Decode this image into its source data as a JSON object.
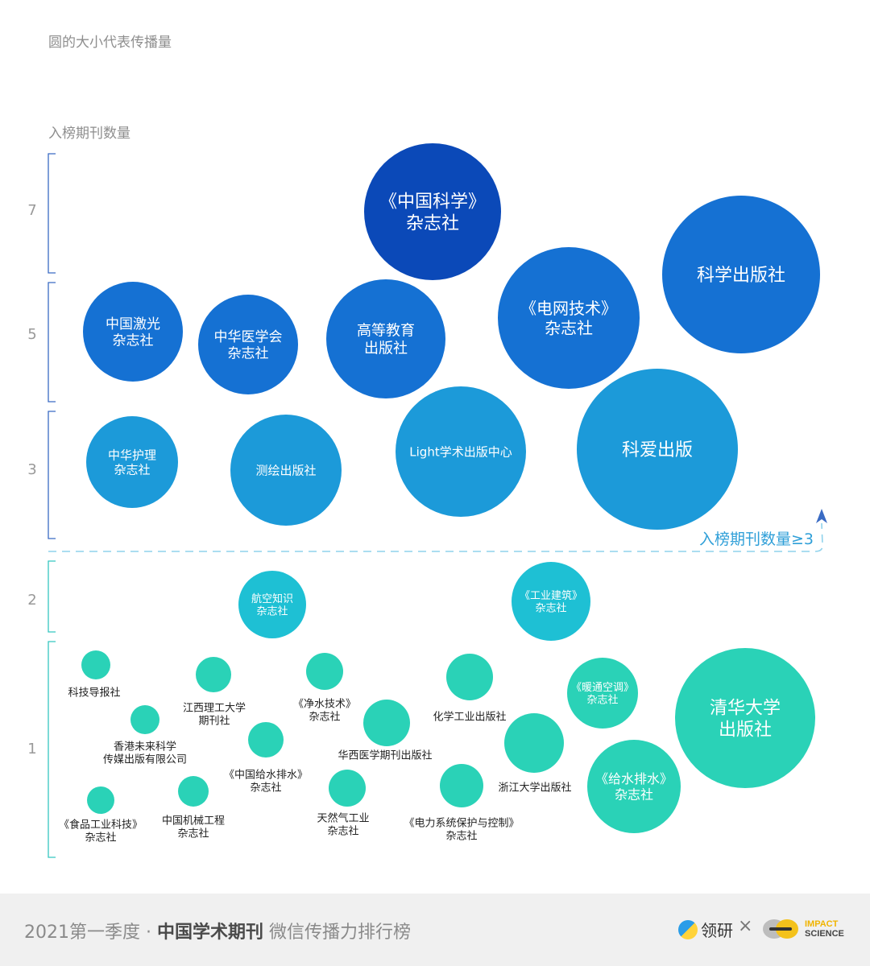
{
  "header": {
    "size_note": "圆的大小代表传播量",
    "y_axis_title": "入榜期刊数量"
  },
  "threshold_label": "入榜期刊数量≥3",
  "footer": {
    "year_text": "2021第一季度",
    "separator": "·",
    "title_bold": "中国学术期刊",
    "title_rest": "微信传播力排行榜",
    "brand_left": "领研",
    "times": "×",
    "brand_right_line1": "IMPACT",
    "brand_right_line2": "SCIENCE"
  },
  "colors": {
    "navy": "#0b49b8",
    "blue": "#1571d3",
    "sky": "#1c9ad9",
    "teal_dark": "#1ec0d4",
    "teal": "#2ad2b7",
    "axis_blue": "#3a6bc4",
    "axis_teal": "#35c7c0"
  },
  "chart_data": {
    "type": "bubble",
    "y_label": "入榜期刊数量",
    "y_ticks": [
      "1",
      "2",
      "3",
      "5",
      "7"
    ],
    "size_encoding": "圆的大小代表传播量",
    "threshold": {
      "label": "入榜期刊数量≥3",
      "value": 3
    },
    "publishers": [
      {
        "name_lines": [
          "《中国科学》",
          "杂志社"
        ],
        "count": 7,
        "size": 85,
        "color": "navy"
      },
      {
        "name_lines": [
          "科学出版社"
        ],
        "count": 5,
        "size": 98,
        "color": "blue"
      },
      {
        "name_lines": [
          "中国激光",
          "杂志社"
        ],
        "count": 5,
        "size": 62,
        "color": "blue"
      },
      {
        "name_lines": [
          "中华医学会",
          "杂志社"
        ],
        "count": 5,
        "size": 62,
        "color": "blue"
      },
      {
        "name_lines": [
          "高等教育",
          "出版社"
        ],
        "count": 5,
        "size": 74,
        "color": "blue"
      },
      {
        "name_lines": [
          "《电网技术》",
          "杂志社"
        ],
        "count": 5,
        "size": 88,
        "color": "blue"
      },
      {
        "name_lines": [
          "中华护理",
          "杂志社"
        ],
        "count": 3,
        "size": 57,
        "color": "sky"
      },
      {
        "name_lines": [
          "测绘出版社"
        ],
        "count": 3,
        "size": 69,
        "color": "sky"
      },
      {
        "name_lines": [
          "Light学术出版中心"
        ],
        "count": 3,
        "size": 81,
        "color": "sky"
      },
      {
        "name_lines": [
          "科爱出版"
        ],
        "count": 3,
        "size": 100,
        "color": "sky"
      },
      {
        "name_lines": [
          "航空知识",
          "杂志社"
        ],
        "count": 2,
        "size": 42,
        "color": "teal_dark"
      },
      {
        "name_lines": [
          "《工业建筑》",
          "杂志社"
        ],
        "count": 2,
        "size": 49,
        "color": "teal_dark"
      },
      {
        "name_lines": [
          "科技导报社"
        ],
        "count": 1,
        "size": 18,
        "color": "teal"
      },
      {
        "name_lines": [
          "江西理工大学",
          "期刊社"
        ],
        "count": 1,
        "size": 22,
        "color": "teal"
      },
      {
        "name_lines": [
          "《净水技术》",
          "杂志社"
        ],
        "count": 1,
        "size": 23,
        "color": "teal"
      },
      {
        "name_lines": [
          "化学工业出版社"
        ],
        "count": 1,
        "size": 29,
        "color": "teal"
      },
      {
        "name_lines": [
          "《暖通空调》",
          "杂志社"
        ],
        "count": 1,
        "size": 44,
        "color": "teal"
      },
      {
        "name_lines": [
          "清华大学",
          "出版社"
        ],
        "count": 1,
        "size": 87,
        "color": "teal"
      },
      {
        "name_lines": [
          "香港未来科学",
          "传媒出版有限公司"
        ],
        "count": 1,
        "size": 18,
        "color": "teal"
      },
      {
        "name_lines": [
          "《中国给水排水》",
          "杂志社"
        ],
        "count": 1,
        "size": 22,
        "color": "teal"
      },
      {
        "name_lines": [
          "华西医学期刊出版社"
        ],
        "count": 1,
        "size": 29,
        "color": "teal"
      },
      {
        "name_lines": [
          "浙江大学出版社"
        ],
        "count": 1,
        "size": 37,
        "color": "teal"
      },
      {
        "name_lines": [
          "《给水排水》",
          "杂志社"
        ],
        "count": 1,
        "size": 58,
        "color": "teal"
      },
      {
        "name_lines": [
          "《食品工业科技》",
          "杂志社"
        ],
        "count": 1,
        "size": 17,
        "color": "teal"
      },
      {
        "name_lines": [
          "中国机械工程",
          "杂志社"
        ],
        "count": 1,
        "size": 19,
        "color": "teal"
      },
      {
        "name_lines": [
          "天然气工业",
          "杂志社"
        ],
        "count": 1,
        "size": 23,
        "color": "teal"
      },
      {
        "name_lines": [
          "《电力系统保护与控制》",
          "杂志社"
        ],
        "count": 1,
        "size": 27,
        "color": "teal"
      }
    ]
  }
}
